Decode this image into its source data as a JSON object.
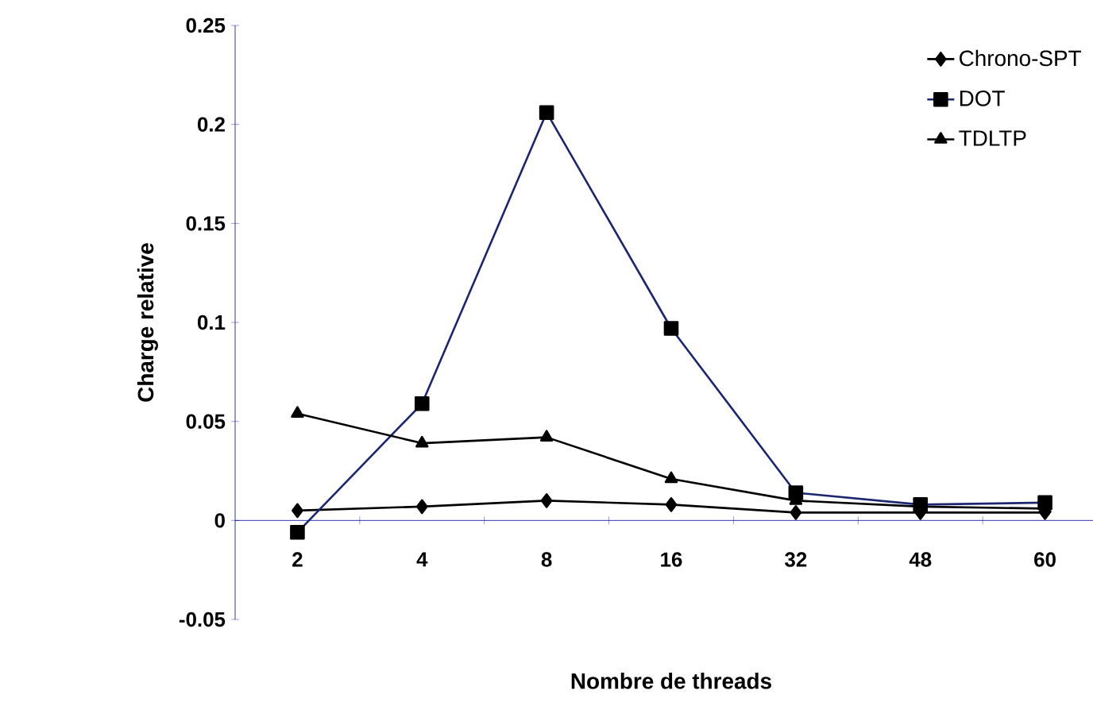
{
  "chart_data": {
    "type": "line",
    "xlabel": "Nombre de threads",
    "ylabel": "Charge relative",
    "categories": [
      "2",
      "4",
      "8",
      "16",
      "32",
      "48",
      "60"
    ],
    "series": [
      {
        "name": "Chrono-SPT",
        "color": "#000000",
        "marker": "diamond",
        "values": [
          0.005,
          0.007,
          0.01,
          0.008,
          0.004,
          0.004,
          0.004
        ]
      },
      {
        "name": "DOT",
        "color": "#1c2670",
        "marker": "square",
        "values": [
          -0.006,
          0.059,
          0.206,
          0.097,
          0.014,
          0.008,
          0.009
        ]
      },
      {
        "name": "TDLTP",
        "color": "#000000",
        "marker": "triangle",
        "values": [
          0.054,
          0.039,
          0.042,
          0.021,
          0.01,
          0.007,
          0.006
        ]
      }
    ],
    "ylim": [
      -0.05,
      0.25
    ],
    "yticks": [
      -0.05,
      0,
      0.05,
      0.1,
      0.15,
      0.2,
      0.25
    ],
    "grid": false,
    "legend": "top right",
    "line_style": "solid"
  }
}
